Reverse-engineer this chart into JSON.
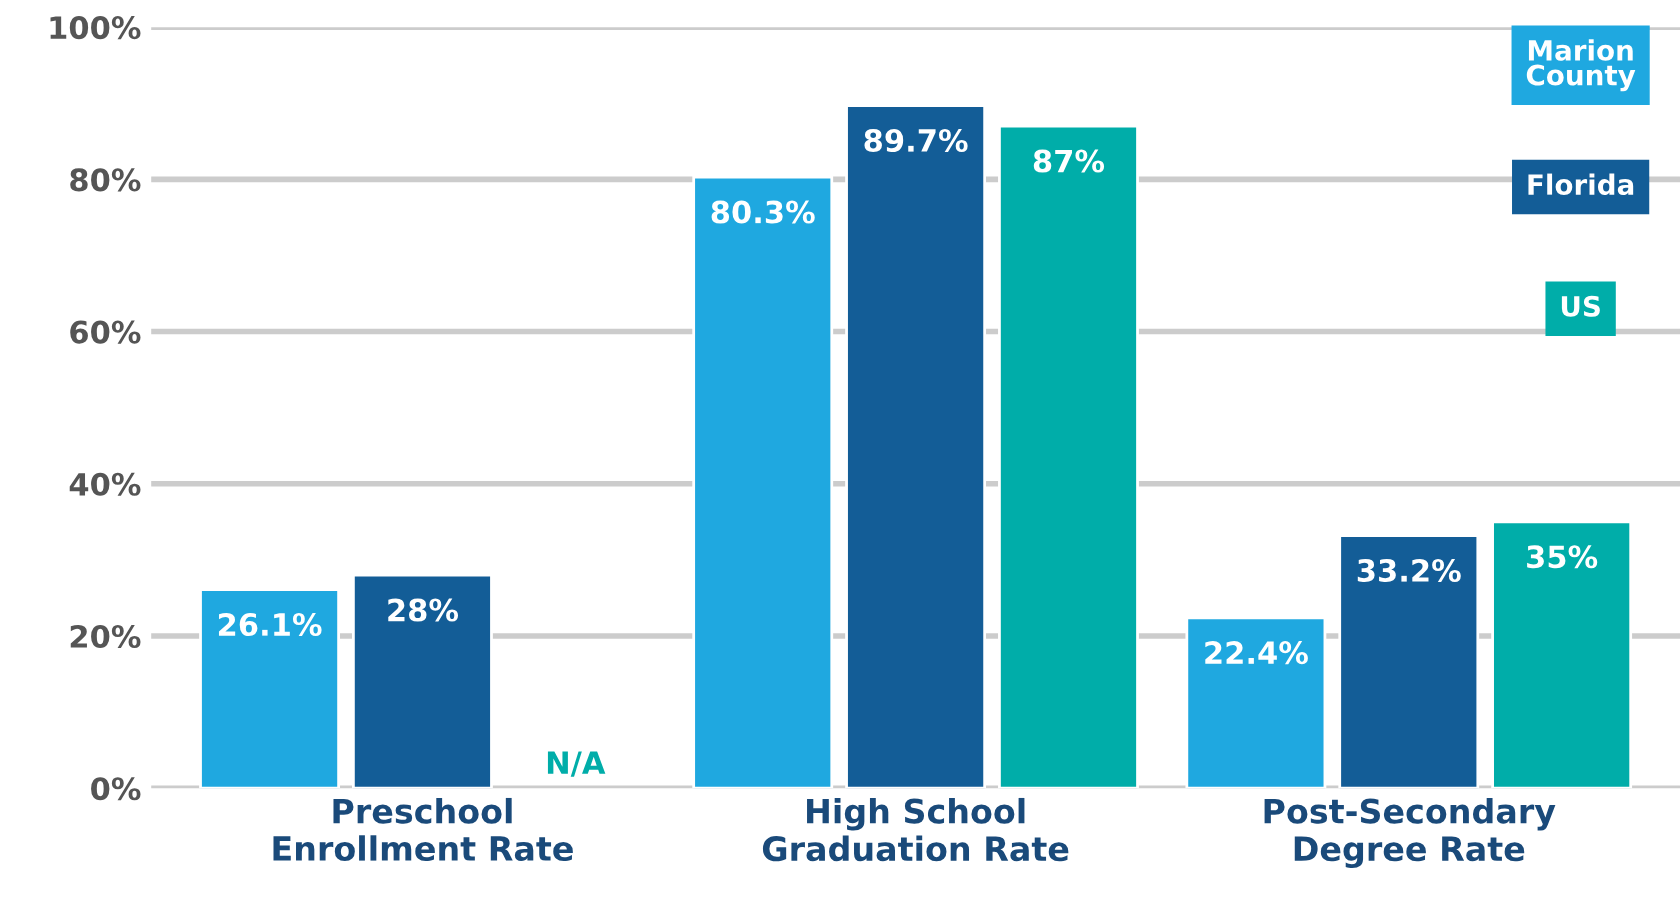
{
  "chart_data": {
    "type": "bar",
    "categories": [
      "Preschool\nEnrollment Rate",
      "High School\nGraduation Rate",
      "Post-Secondary\nDegree Rate"
    ],
    "series": [
      {
        "name": "Marion\nCounty",
        "color": "#1fa8e0",
        "values": [
          26.1,
          80.3,
          22.4
        ],
        "value_labels": [
          "26.1%",
          "80.3%",
          "22.4%"
        ]
      },
      {
        "name": "Florida",
        "color": "#135d97",
        "values": [
          28,
          89.7,
          33.2
        ],
        "value_labels": [
          "28%",
          "89.7%",
          "33.2%"
        ]
      },
      {
        "name": "US",
        "color": "#00ada9",
        "values": [
          null,
          87,
          35
        ],
        "value_labels": [
          "N/A",
          "87%",
          "35%"
        ]
      }
    ],
    "ylim": [
      0,
      100
    ],
    "yticks": [
      {
        "value": 0,
        "label": "0%"
      },
      {
        "value": 20,
        "label": "20%"
      },
      {
        "value": 40,
        "label": "40%"
      },
      {
        "value": 60,
        "label": "60%"
      },
      {
        "value": 80,
        "label": "80%"
      },
      {
        "value": 100,
        "label": "100%"
      }
    ],
    "grid": "y",
    "legend": "top right"
  }
}
